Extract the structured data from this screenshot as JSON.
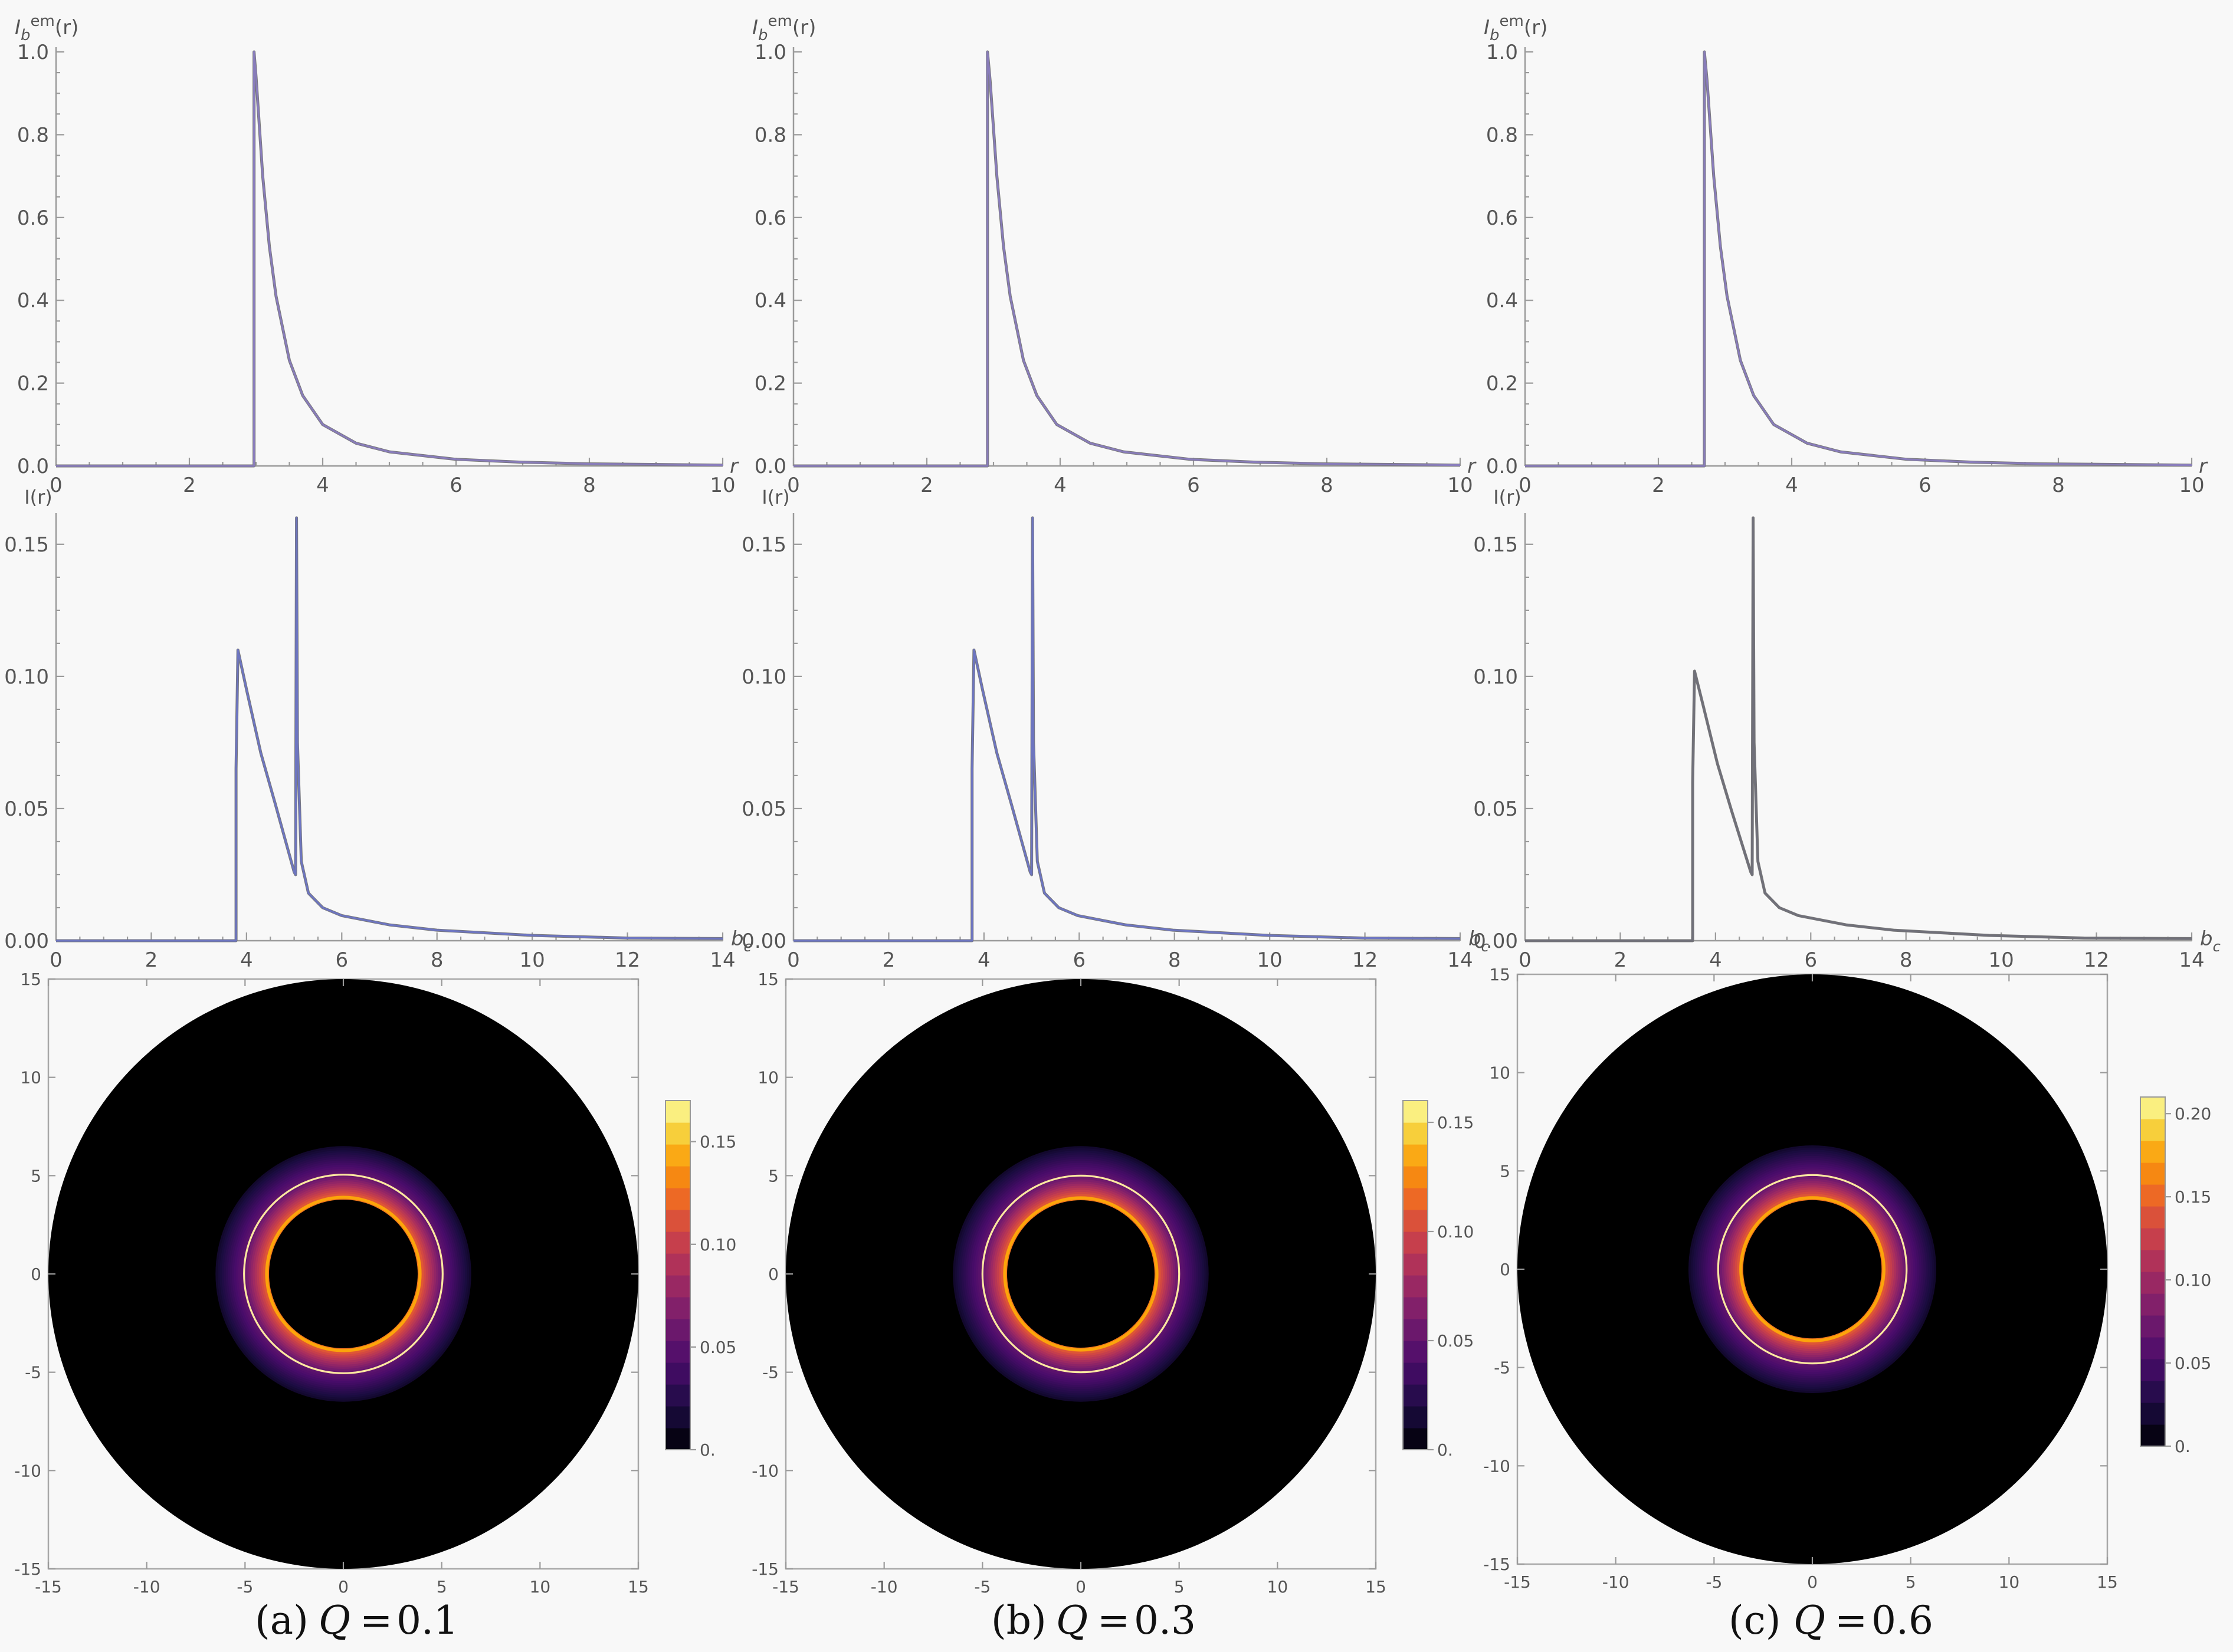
{
  "captions": [
    {
      "label": "(a)",
      "param": "Q",
      "eq": "=",
      "value": "0.1"
    },
    {
      "label": "(b)",
      "param": "Q",
      "eq": "=",
      "value": "0.3"
    },
    {
      "label": "(c)",
      "param": "Q",
      "eq": "=",
      "value": "0.6"
    }
  ],
  "chart_data": [
    {
      "type": "line",
      "panel": "a-emission",
      "ylabel": "I_b^em(r)",
      "xlabel": "r",
      "xlim": [
        0,
        10
      ],
      "ylim": [
        0,
        1
      ],
      "xticks": [
        "0",
        "2",
        "4",
        "6",
        "8",
        "10"
      ],
      "yticks": [
        "0.0",
        "0.2",
        "0.4",
        "0.6",
        "0.8",
        "1.0"
      ],
      "r_horizon": 2.97,
      "color": "#8a7cc0",
      "x": [
        2.97,
        3.0,
        3.1,
        3.2,
        3.3,
        3.5,
        3.7,
        4.0,
        4.5,
        5.0,
        6.0,
        7.0,
        8.0,
        10.0
      ],
      "y": [
        1.0,
        0.94,
        0.7,
        0.53,
        0.41,
        0.255,
        0.17,
        0.1,
        0.055,
        0.034,
        0.016,
        0.009,
        0.005,
        0.002
      ]
    },
    {
      "type": "line",
      "panel": "a-observed",
      "ylabel": "I(r)",
      "xlabel": "b_c",
      "xlim": [
        0,
        14
      ],
      "ylim": [
        0,
        0.16
      ],
      "xticks": [
        "0",
        "2",
        "4",
        "6",
        "8",
        "10",
        "12",
        "14"
      ],
      "yticks": [
        "0.00",
        "0.05",
        "0.10",
        "0.15"
      ],
      "color": "#6b74c8",
      "x": [
        0,
        3.78,
        3.78,
        3.82,
        4.0,
        4.3,
        4.6,
        5.0,
        5.03,
        5.05,
        5.07,
        5.15,
        5.3,
        5.6,
        6.0,
        7.0,
        8.0,
        10.0,
        12.0,
        14.0
      ],
      "y": [
        0,
        0,
        0.065,
        0.11,
        0.095,
        0.071,
        0.052,
        0.026,
        0.025,
        0.16,
        0.075,
        0.03,
        0.018,
        0.0125,
        0.0095,
        0.006,
        0.004,
        0.002,
        0.001,
        0.0008
      ]
    },
    {
      "type": "heatmap",
      "panel": "a-image",
      "xlim": [
        -15,
        15
      ],
      "ylim": [
        -15,
        15
      ],
      "xticks": [
        "-15",
        "-10",
        "-5",
        "0",
        "5",
        "10",
        "15"
      ],
      "yticks": [
        "-15",
        "-10",
        "-5",
        "0",
        "5",
        "10",
        "15"
      ],
      "disk_radius": 15,
      "shadow_radius": 3.78,
      "ring_radius": 5.05,
      "glow_radius": 6.5,
      "colorbar_max": 0.17,
      "colorbar_ticks": [
        "0.",
        "0.05",
        "0.10",
        "0.15"
      ]
    },
    {
      "type": "line",
      "panel": "b-emission",
      "ylabel": "I_b^em(r)",
      "xlabel": "r",
      "xlim": [
        0,
        10
      ],
      "ylim": [
        0,
        1
      ],
      "xticks": [
        "0",
        "2",
        "4",
        "6",
        "8",
        "10"
      ],
      "yticks": [
        "0.0",
        "0.2",
        "0.4",
        "0.6",
        "0.8",
        "1.0"
      ],
      "r_horizon": 2.91,
      "color": "#8a7cc0",
      "x": [
        2.91,
        2.95,
        3.05,
        3.15,
        3.25,
        3.45,
        3.65,
        3.95,
        4.45,
        4.95,
        5.95,
        6.95,
        7.95,
        10.0
      ],
      "y": [
        1.0,
        0.93,
        0.7,
        0.53,
        0.41,
        0.255,
        0.17,
        0.1,
        0.055,
        0.034,
        0.016,
        0.009,
        0.005,
        0.002
      ]
    },
    {
      "type": "line",
      "panel": "b-observed",
      "ylabel": "I(r)",
      "xlabel": "b_c",
      "xlim": [
        0,
        14
      ],
      "ylim": [
        0,
        0.16
      ],
      "xticks": [
        "0",
        "2",
        "4",
        "6",
        "8",
        "10",
        "12",
        "14"
      ],
      "yticks": [
        "0.00",
        "0.05",
        "0.10",
        "0.15"
      ],
      "color": "#6b74c8",
      "x": [
        0,
        3.75,
        3.75,
        3.79,
        3.97,
        4.27,
        4.57,
        4.97,
        5.0,
        5.02,
        5.04,
        5.12,
        5.27,
        5.57,
        5.97,
        6.97,
        7.97,
        9.97,
        11.97,
        14.0
      ],
      "y": [
        0,
        0,
        0.065,
        0.11,
        0.095,
        0.071,
        0.052,
        0.026,
        0.025,
        0.16,
        0.075,
        0.03,
        0.018,
        0.0125,
        0.0095,
        0.006,
        0.004,
        0.002,
        0.001,
        0.0008
      ]
    },
    {
      "type": "heatmap",
      "panel": "b-image",
      "xlim": [
        -15,
        15
      ],
      "ylim": [
        -15,
        15
      ],
      "xticks": [
        "-15",
        "-10",
        "-5",
        "0",
        "5",
        "10",
        "15"
      ],
      "yticks": [
        "-15",
        "-10",
        "-5",
        "0",
        "5",
        "10",
        "15"
      ],
      "disk_radius": 15,
      "shadow_radius": 3.75,
      "ring_radius": 5.0,
      "glow_radius": 6.5,
      "colorbar_max": 0.16,
      "colorbar_ticks": [
        "0.",
        "0.05",
        "0.10",
        "0.15"
      ]
    },
    {
      "type": "line",
      "panel": "c-emission",
      "ylabel": "I_b^em(r)",
      "xlabel": "r",
      "xlim": [
        0,
        10
      ],
      "ylim": [
        0,
        1
      ],
      "xticks": [
        "0",
        "2",
        "4",
        "6",
        "8",
        "10"
      ],
      "yticks": [
        "0.0",
        "0.2",
        "0.4",
        "0.6",
        "0.8",
        "1.0"
      ],
      "r_horizon": 2.69,
      "color": "#8a7cc0",
      "x": [
        2.69,
        2.73,
        2.83,
        2.93,
        3.03,
        3.23,
        3.43,
        3.73,
        4.23,
        4.73,
        5.73,
        6.73,
        7.73,
        10.0
      ],
      "y": [
        1.0,
        0.93,
        0.7,
        0.53,
        0.41,
        0.255,
        0.17,
        0.1,
        0.055,
        0.034,
        0.016,
        0.009,
        0.005,
        0.002
      ]
    },
    {
      "type": "line",
      "panel": "c-observed",
      "ylabel": "I(r)",
      "xlabel": "b_c",
      "xlim": [
        0,
        14
      ],
      "ylim": [
        0,
        0.16
      ],
      "xticks": [
        "0",
        "2",
        "4",
        "6",
        "8",
        "10",
        "12",
        "14"
      ],
      "yticks": [
        "0.00",
        "0.05",
        "0.10",
        "0.15"
      ],
      "color": "#6f6f7a",
      "x": [
        0,
        3.52,
        3.52,
        3.56,
        3.74,
        4.04,
        4.34,
        4.74,
        4.77,
        4.79,
        4.81,
        4.89,
        5.04,
        5.34,
        5.74,
        6.74,
        7.74,
        9.74,
        11.74,
        14.0
      ],
      "y": [
        0,
        0,
        0.06,
        0.102,
        0.089,
        0.067,
        0.049,
        0.026,
        0.025,
        0.16,
        0.075,
        0.03,
        0.018,
        0.0125,
        0.0095,
        0.006,
        0.004,
        0.002,
        0.001,
        0.0008
      ]
    },
    {
      "type": "heatmap",
      "panel": "c-image",
      "xlim": [
        -15,
        15
      ],
      "ylim": [
        -15,
        15
      ],
      "xticks": [
        "-15",
        "-10",
        "-5",
        "0",
        "5",
        "10",
        "15"
      ],
      "yticks": [
        "-15",
        "-10",
        "-5",
        "0",
        "5",
        "10",
        "15"
      ],
      "disk_radius": 15,
      "shadow_radius": 3.52,
      "ring_radius": 4.79,
      "glow_radius": 6.3,
      "colorbar_max": 0.21,
      "colorbar_ticks": [
        "0.",
        "0.05",
        "0.10",
        "0.15",
        "0.20"
      ]
    }
  ]
}
